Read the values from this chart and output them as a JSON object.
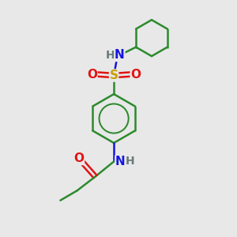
{
  "bg_color": "#e8e8e8",
  "atom_colors": {
    "C": "#2d8a2d",
    "N": "#1414e0",
    "O": "#e01414",
    "S": "#c8a000",
    "H": "#6a7a7a"
  },
  "bond_color": "#2d8a2d",
  "figsize": [
    3.0,
    3.0
  ],
  "dpi": 100
}
